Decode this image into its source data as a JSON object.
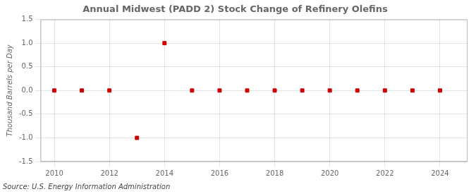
{
  "chart_data": {
    "type": "scatter",
    "title": "Annual Midwest (PADD 2) Stock Change of Refinery Olefins",
    "ylabel": "Thousand Barrels per Day",
    "annotation": "Source: U.S. Energy Information Administration",
    "x": [
      2010,
      2011,
      2012,
      2013,
      2014,
      2015,
      2016,
      2017,
      2018,
      2019,
      2020,
      2021,
      2022,
      2023,
      2024
    ],
    "values": [
      0.0,
      0.0,
      0.0,
      -1.0,
      1.0,
      0.0,
      0.0,
      0.0,
      0.0,
      0.0,
      0.0,
      0.0,
      0.0,
      0.0,
      0.0
    ],
    "color": "#cc0000",
    "marker": "square",
    "xlim": [
      2009.5,
      2025.0
    ],
    "ylim": [
      -1.5,
      1.5
    ],
    "xticks": [
      2010,
      2012,
      2014,
      2016,
      2018,
      2020,
      2022,
      2024
    ],
    "yticks": [
      -1.5,
      {
        "value": -1.0,
        "label": "-1.0"
      },
      -0.5,
      {
        "value": 0.0,
        "label": "0.0"
      },
      0.5,
      {
        "value": 1.0,
        "label": "1.0"
      },
      1.5
    ],
    "grid": true
  }
}
